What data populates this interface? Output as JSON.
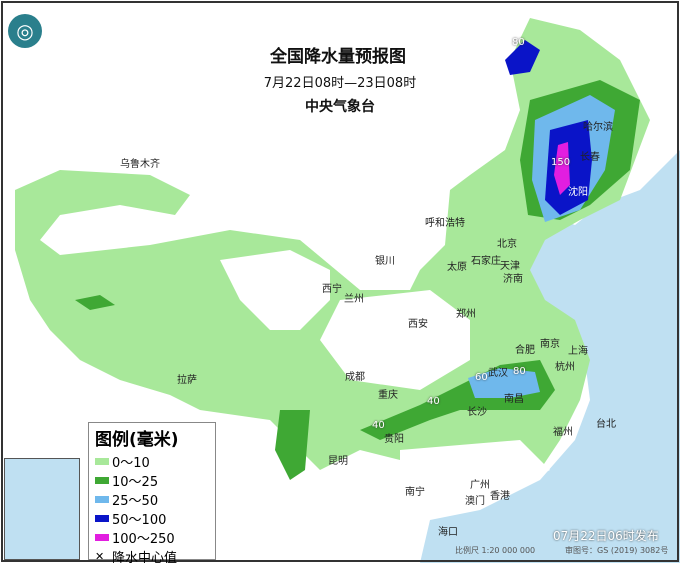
{
  "header": {
    "title": "全国降水量预报图",
    "period": "7月22日08时—23日08时",
    "agency": "中央气象台"
  },
  "legend": {
    "title": "图例(毫米)",
    "items": [
      {
        "label": "0～10",
        "color": "#a8e89a"
      },
      {
        "label": "10～25",
        "color": "#3fa834"
      },
      {
        "label": "25～50",
        "color": "#6fb8ec"
      },
      {
        "label": "50～100",
        "color": "#0a14c8"
      },
      {
        "label": "100～250",
        "color": "#e21ee0"
      }
    ],
    "center_label": "降水中心值"
  },
  "cities": [
    "乌鲁木齐",
    "拉萨",
    "西宁",
    "兰州",
    "银川",
    "呼和浩特",
    "北京",
    "天津",
    "石家庄",
    "太原",
    "济南",
    "郑州",
    "西安",
    "成都",
    "重庆",
    "贵阳",
    "昆明",
    "武汉",
    "长沙",
    "南昌",
    "合肥",
    "南京",
    "上海",
    "杭州",
    "福州",
    "台北",
    "广州",
    "南宁",
    "香港",
    "澳门",
    "海口",
    "哈尔滨",
    "长春",
    "沈阳"
  ],
  "center_values": [
    "80",
    "150",
    "60",
    "80",
    "40",
    "40"
  ],
  "footer": {
    "issued": "07月22日06时发布",
    "scale": "比例尺 1:20 000 000",
    "review": "审图号：GS (2019) 3082号"
  },
  "colors": {
    "sea": "#bfe0f2",
    "land": "#ffffff"
  }
}
